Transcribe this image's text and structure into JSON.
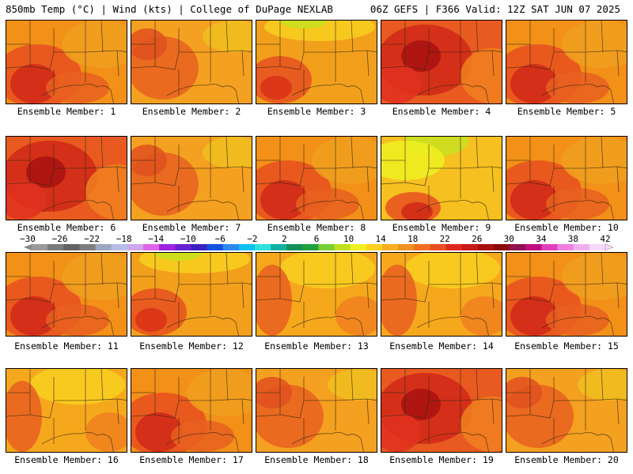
{
  "header": {
    "left": "850mb Temp (°C) | Wind (kts) | College of DuPage NEXLAB",
    "right": "06Z GEFS | F366 Valid: 12Z SAT JUN 07 2025"
  },
  "panels": [
    {
      "label": "Ensemble Member: 1",
      "scheme": "hot-west"
    },
    {
      "label": "Ensemble Member: 2",
      "scheme": "warm"
    },
    {
      "label": "Ensemble Member: 3",
      "scheme": "warm-cool-north"
    },
    {
      "label": "Ensemble Member: 4",
      "scheme": "very-hot"
    },
    {
      "label": "Ensemble Member: 5",
      "scheme": "hot-west"
    },
    {
      "label": "Ensemble Member: 6",
      "scheme": "very-hot"
    },
    {
      "label": "Ensemble Member: 7",
      "scheme": "warm"
    },
    {
      "label": "Ensemble Member: 8",
      "scheme": "hot-west"
    },
    {
      "label": "Ensemble Member: 9",
      "scheme": "cool-north"
    },
    {
      "label": "Ensemble Member: 10",
      "scheme": "hot-west"
    },
    {
      "label": "Ensemble Member: 11",
      "scheme": "hot-west"
    },
    {
      "label": "Ensemble Member: 12",
      "scheme": "warm-cool-north"
    },
    {
      "label": "Ensemble Member: 13",
      "scheme": "mild"
    },
    {
      "label": "Ensemble Member: 14",
      "scheme": "mild"
    },
    {
      "label": "Ensemble Member: 15",
      "scheme": "hot-west"
    },
    {
      "label": "Ensemble Member: 16",
      "scheme": "mild"
    },
    {
      "label": "Ensemble Member: 17",
      "scheme": "hot-west"
    },
    {
      "label": "Ensemble Member: 18",
      "scheme": "warm"
    },
    {
      "label": "Ensemble Member: 19",
      "scheme": "very-hot"
    },
    {
      "label": "Ensemble Member: 20",
      "scheme": "warm"
    }
  ],
  "colorbar": {
    "labels": [
      "-30",
      "-26",
      "-22",
      "-18",
      "-14",
      "-10",
      "-6",
      "-2",
      "2",
      "6",
      "10",
      "14",
      "18",
      "22",
      "26",
      "30",
      "34",
      "38",
      "42"
    ],
    "colors": [
      "#9a9a9a",
      "#7b7b7b",
      "#636363",
      "#7e7e7e",
      "#9ca8c0",
      "#b7bde8",
      "#cfa7ee",
      "#e066e8",
      "#a020e0",
      "#6a22d0",
      "#3a22c0",
      "#1850e0",
      "#2a8af0",
      "#10c0f0",
      "#30e0e0",
      "#10b0a0",
      "#129058",
      "#20a040",
      "#7ad030",
      "#c0e020",
      "#f0f020",
      "#ffd020",
      "#f8b020",
      "#f09020",
      "#f07020",
      "#e85020",
      "#e02820",
      "#c81818",
      "#a81010",
      "#8a0808",
      "#901050",
      "#c01080",
      "#e040c0",
      "#f080e0",
      "#f0b0f0",
      "#f8d8f8"
    ]
  }
}
